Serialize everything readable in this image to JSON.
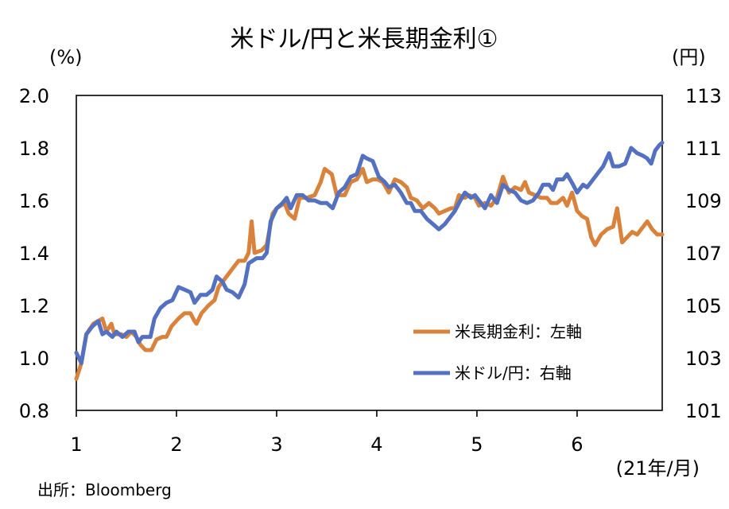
{
  "chart_data": {
    "type": "line",
    "title": "米ドル/円と米長期金利①",
    "left_unit": "(%)",
    "right_unit": "(円)",
    "x_unit": "(21年/月)",
    "source": "出所：Bloomberg",
    "xlim": [
      1,
      6.85
    ],
    "x_ticks": [
      1,
      2,
      3,
      4,
      5,
      6
    ],
    "x_tick_labels": [
      "1",
      "2",
      "3",
      "4",
      "5",
      "6"
    ],
    "ylim_left": [
      0.8,
      2.0
    ],
    "y_ticks_left": [
      "2.0",
      "1.8",
      "1.6",
      "1.4",
      "1.2",
      "1.0",
      "0.8"
    ],
    "ylim_right": [
      101,
      113
    ],
    "y_ticks_right": [
      "113",
      "111",
      "109",
      "107",
      "105",
      "103",
      "101"
    ],
    "legend_position": "bottom-right",
    "colors": {
      "yield": "#D9823B",
      "usdjpy": "#5470C0"
    },
    "series": [
      {
        "name": "米長期金利：左軸",
        "axis": "left",
        "points": [
          [
            1.0,
            0.92
          ],
          [
            1.05,
            0.98
          ],
          [
            1.1,
            1.09
          ],
          [
            1.17,
            1.13
          ],
          [
            1.26,
            1.15
          ],
          [
            1.3,
            1.1
          ],
          [
            1.35,
            1.13
          ],
          [
            1.38,
            1.09
          ],
          [
            1.45,
            1.09
          ],
          [
            1.5,
            1.08
          ],
          [
            1.55,
            1.1
          ],
          [
            1.6,
            1.08
          ],
          [
            1.64,
            1.05
          ],
          [
            1.69,
            1.03
          ],
          [
            1.75,
            1.03
          ],
          [
            1.8,
            1.07
          ],
          [
            1.86,
            1.08
          ],
          [
            1.9,
            1.08
          ],
          [
            1.95,
            1.12
          ],
          [
            2.02,
            1.15
          ],
          [
            2.08,
            1.17
          ],
          [
            2.14,
            1.17
          ],
          [
            2.18,
            1.14
          ],
          [
            2.2,
            1.13
          ],
          [
            2.25,
            1.17
          ],
          [
            2.32,
            1.2
          ],
          [
            2.38,
            1.22
          ],
          [
            2.42,
            1.27
          ],
          [
            2.5,
            1.31
          ],
          [
            2.56,
            1.34
          ],
          [
            2.62,
            1.37
          ],
          [
            2.68,
            1.37
          ],
          [
            2.72,
            1.4
          ],
          [
            2.75,
            1.52
          ],
          [
            2.78,
            1.4
          ],
          [
            2.85,
            1.41
          ],
          [
            2.9,
            1.43
          ],
          [
            2.96,
            1.55
          ],
          [
            3.0,
            1.57
          ],
          [
            3.08,
            1.59
          ],
          [
            3.12,
            1.55
          ],
          [
            3.18,
            1.53
          ],
          [
            3.23,
            1.61
          ],
          [
            3.3,
            1.61
          ],
          [
            3.38,
            1.62
          ],
          [
            3.44,
            1.67
          ],
          [
            3.48,
            1.72
          ],
          [
            3.55,
            1.7
          ],
          [
            3.6,
            1.62
          ],
          [
            3.68,
            1.62
          ],
          [
            3.74,
            1.67
          ],
          [
            3.8,
            1.68
          ],
          [
            3.86,
            1.72
          ],
          [
            3.9,
            1.67
          ],
          [
            3.96,
            1.68
          ],
          [
            4.01,
            1.68
          ],
          [
            4.06,
            1.67
          ],
          [
            4.12,
            1.63
          ],
          [
            4.18,
            1.68
          ],
          [
            4.24,
            1.67
          ],
          [
            4.3,
            1.65
          ],
          [
            4.34,
            1.61
          ],
          [
            4.4,
            1.6
          ],
          [
            4.46,
            1.57
          ],
          [
            4.52,
            1.59
          ],
          [
            4.58,
            1.57
          ],
          [
            4.62,
            1.55
          ],
          [
            4.68,
            1.56
          ],
          [
            4.74,
            1.57
          ],
          [
            4.78,
            1.57
          ],
          [
            4.82,
            1.62
          ],
          [
            4.88,
            1.61
          ],
          [
            4.92,
            1.62
          ],
          [
            4.98,
            1.61
          ],
          [
            5.02,
            1.58
          ],
          [
            5.08,
            1.59
          ],
          [
            5.14,
            1.58
          ],
          [
            5.2,
            1.61
          ],
          [
            5.26,
            1.69
          ],
          [
            5.32,
            1.63
          ],
          [
            5.38,
            1.65
          ],
          [
            5.44,
            1.64
          ],
          [
            5.48,
            1.67
          ],
          [
            5.52,
            1.63
          ],
          [
            5.58,
            1.62
          ],
          [
            5.64,
            1.61
          ],
          [
            5.7,
            1.61
          ],
          [
            5.74,
            1.59
          ],
          [
            5.8,
            1.59
          ],
          [
            5.86,
            1.61
          ],
          [
            5.9,
            1.58
          ],
          [
            5.95,
            1.63
          ],
          [
            6.0,
            1.56
          ],
          [
            6.05,
            1.54
          ],
          [
            6.1,
            1.53
          ],
          [
            6.14,
            1.46
          ],
          [
            6.18,
            1.43
          ],
          [
            6.24,
            1.47
          ],
          [
            6.3,
            1.49
          ],
          [
            6.36,
            1.5
          ],
          [
            6.4,
            1.57
          ],
          [
            6.45,
            1.44
          ],
          [
            6.5,
            1.46
          ],
          [
            6.55,
            1.48
          ],
          [
            6.6,
            1.47
          ],
          [
            6.66,
            1.5
          ],
          [
            6.7,
            1.52
          ],
          [
            6.75,
            1.49
          ],
          [
            6.8,
            1.47
          ],
          [
            6.85,
            1.47
          ]
        ]
      },
      {
        "name": "米ドル/円：右軸",
        "axis": "right",
        "points": [
          [
            1.0,
            103.2
          ],
          [
            1.05,
            102.8
          ],
          [
            1.1,
            103.9
          ],
          [
            1.16,
            104.2
          ],
          [
            1.22,
            104.4
          ],
          [
            1.26,
            103.9
          ],
          [
            1.3,
            104.0
          ],
          [
            1.36,
            103.8
          ],
          [
            1.4,
            104.0
          ],
          [
            1.46,
            103.8
          ],
          [
            1.52,
            104.0
          ],
          [
            1.58,
            104.0
          ],
          [
            1.62,
            103.6
          ],
          [
            1.66,
            103.8
          ],
          [
            1.7,
            103.8
          ],
          [
            1.74,
            103.8
          ],
          [
            1.78,
            104.5
          ],
          [
            1.84,
            104.9
          ],
          [
            1.9,
            105.1
          ],
          [
            1.96,
            105.2
          ],
          [
            2.02,
            105.7
          ],
          [
            2.08,
            105.6
          ],
          [
            2.14,
            105.5
          ],
          [
            2.18,
            105.1
          ],
          [
            2.24,
            105.4
          ],
          [
            2.3,
            105.4
          ],
          [
            2.36,
            105.6
          ],
          [
            2.4,
            106.1
          ],
          [
            2.46,
            105.9
          ],
          [
            2.5,
            105.6
          ],
          [
            2.56,
            105.5
          ],
          [
            2.62,
            105.3
          ],
          [
            2.68,
            105.8
          ],
          [
            2.72,
            106.6
          ],
          [
            2.8,
            106.8
          ],
          [
            2.86,
            106.8
          ],
          [
            2.9,
            107.0
          ],
          [
            2.94,
            108.2
          ],
          [
            3.0,
            108.7
          ],
          [
            3.06,
            108.9
          ],
          [
            3.1,
            109.1
          ],
          [
            3.14,
            108.7
          ],
          [
            3.2,
            109.2
          ],
          [
            3.26,
            109.2
          ],
          [
            3.32,
            109.0
          ],
          [
            3.38,
            109.0
          ],
          [
            3.44,
            108.9
          ],
          [
            3.5,
            108.9
          ],
          [
            3.56,
            108.7
          ],
          [
            3.62,
            109.3
          ],
          [
            3.68,
            109.5
          ],
          [
            3.74,
            109.9
          ],
          [
            3.8,
            110.0
          ],
          [
            3.86,
            110.7
          ],
          [
            3.9,
            110.6
          ],
          [
            3.96,
            110.5
          ],
          [
            4.02,
            109.9
          ],
          [
            4.08,
            109.7
          ],
          [
            4.12,
            109.5
          ],
          [
            4.18,
            109.6
          ],
          [
            4.24,
            109.3
          ],
          [
            4.3,
            108.9
          ],
          [
            4.34,
            108.9
          ],
          [
            4.38,
            108.6
          ],
          [
            4.44,
            108.6
          ],
          [
            4.5,
            108.3
          ],
          [
            4.56,
            108.1
          ],
          [
            4.62,
            107.9
          ],
          [
            4.68,
            108.1
          ],
          [
            4.72,
            108.3
          ],
          [
            4.78,
            108.6
          ],
          [
            4.82,
            108.9
          ],
          [
            4.88,
            109.3
          ],
          [
            4.94,
            109.1
          ],
          [
            4.98,
            109.2
          ],
          [
            5.04,
            108.9
          ],
          [
            5.08,
            108.7
          ],
          [
            5.14,
            109.2
          ],
          [
            5.2,
            108.9
          ],
          [
            5.26,
            109.6
          ],
          [
            5.32,
            109.4
          ],
          [
            5.38,
            109.3
          ],
          [
            5.44,
            109.0
          ],
          [
            5.5,
            108.9
          ],
          [
            5.56,
            109.0
          ],
          [
            5.62,
            109.3
          ],
          [
            5.66,
            109.6
          ],
          [
            5.72,
            109.6
          ],
          [
            5.76,
            109.4
          ],
          [
            5.8,
            109.8
          ],
          [
            5.86,
            109.8
          ],
          [
            5.9,
            110.0
          ],
          [
            5.96,
            109.6
          ],
          [
            6.0,
            109.3
          ],
          [
            6.06,
            109.6
          ],
          [
            6.1,
            109.5
          ],
          [
            6.14,
            109.7
          ],
          [
            6.2,
            110.0
          ],
          [
            6.26,
            110.3
          ],
          [
            6.32,
            110.8
          ],
          [
            6.36,
            110.3
          ],
          [
            6.42,
            110.3
          ],
          [
            6.48,
            110.4
          ],
          [
            6.54,
            111.0
          ],
          [
            6.6,
            110.8
          ],
          [
            6.66,
            110.7
          ],
          [
            6.7,
            110.6
          ],
          [
            6.74,
            110.4
          ],
          [
            6.78,
            110.9
          ],
          [
            6.82,
            111.1
          ],
          [
            6.85,
            111.2
          ]
        ]
      }
    ]
  }
}
